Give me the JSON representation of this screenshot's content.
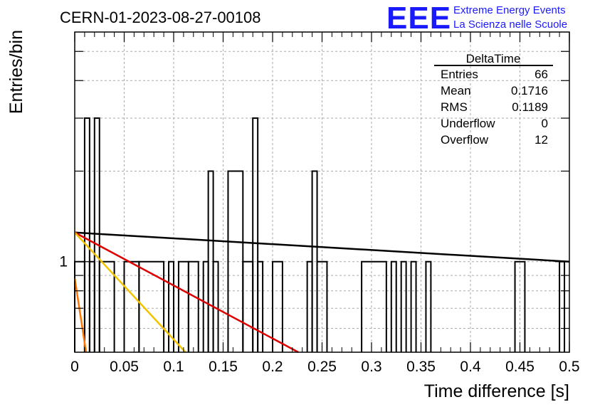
{
  "chart_data": {
    "type": "histogram",
    "title": "CERN-01-2023-08-27-00108",
    "xlabel": "Time difference [s]",
    "ylabel": "Entries/bin",
    "xlim": [
      0,
      0.5
    ],
    "ylim": [
      0.5,
      5.8
    ],
    "log_y": true,
    "grid": true,
    "x_ticks": [
      "0",
      "0.05",
      "0.1",
      "0.15",
      "0.2",
      "0.25",
      "0.3",
      "0.35",
      "0.4",
      "0.45",
      "0.5"
    ],
    "y_ticks": [
      "1"
    ],
    "bins": [
      {
        "x0": 0.0,
        "x1": 0.01,
        "y": 1
      },
      {
        "x0": 0.01,
        "x1": 0.015,
        "y": 3
      },
      {
        "x0": 0.015,
        "x1": 0.02,
        "y": 1
      },
      {
        "x0": 0.02,
        "x1": 0.025,
        "y": 3
      },
      {
        "x0": 0.025,
        "x1": 0.04,
        "y": 1
      },
      {
        "x0": 0.05,
        "x1": 0.065,
        "y": 1
      },
      {
        "x0": 0.065,
        "x1": 0.09,
        "y": 1
      },
      {
        "x0": 0.095,
        "x1": 0.1,
        "y": 1
      },
      {
        "x0": 0.105,
        "x1": 0.115,
        "y": 1
      },
      {
        "x0": 0.115,
        "x1": 0.125,
        "y": 1
      },
      {
        "x0": 0.13,
        "x1": 0.135,
        "y": 1
      },
      {
        "x0": 0.135,
        "x1": 0.14,
        "y": 2
      },
      {
        "x0": 0.14,
        "x1": 0.145,
        "y": 1
      },
      {
        "x0": 0.155,
        "x1": 0.17,
        "y": 2
      },
      {
        "x0": 0.17,
        "x1": 0.18,
        "y": 1
      },
      {
        "x0": 0.18,
        "x1": 0.185,
        "y": 3
      },
      {
        "x0": 0.185,
        "x1": 0.19,
        "y": 1
      },
      {
        "x0": 0.2,
        "x1": 0.21,
        "y": 1
      },
      {
        "x0": 0.235,
        "x1": 0.24,
        "y": 1
      },
      {
        "x0": 0.24,
        "x1": 0.245,
        "y": 2
      },
      {
        "x0": 0.245,
        "x1": 0.255,
        "y": 1
      },
      {
        "x0": 0.29,
        "x1": 0.315,
        "y": 1
      },
      {
        "x0": 0.32,
        "x1": 0.325,
        "y": 1
      },
      {
        "x0": 0.33,
        "x1": 0.335,
        "y": 1
      },
      {
        "x0": 0.34,
        "x1": 0.345,
        "y": 1
      },
      {
        "x0": 0.355,
        "x1": 0.36,
        "y": 1
      },
      {
        "x0": 0.445,
        "x1": 0.455,
        "y": 1
      },
      {
        "x0": 0.49,
        "x1": 0.495,
        "y": 1
      }
    ],
    "fit_lines": [
      {
        "color": "#000000",
        "x": [
          0.0,
          0.5
        ],
        "y": [
          1.25,
          1.0
        ]
      },
      {
        "color": "#dd0000",
        "x": [
          0.0,
          0.226
        ],
        "y": [
          1.25,
          0.5
        ]
      },
      {
        "color": "#f2c400",
        "x": [
          0.0,
          0.112
        ],
        "y": [
          1.25,
          0.5
        ]
      },
      {
        "color": "#ff7700",
        "x": [
          0.0,
          0.0115
        ],
        "y": [
          0.88,
          0.5
        ]
      }
    ]
  },
  "logo": {
    "big": "EEE",
    "line1": "Extreme Energy Events",
    "line2": "La Scienza nelle Scuole"
  },
  "stats": {
    "title": "DeltaTime",
    "rows": [
      {
        "label": "Entries",
        "value": "66"
      },
      {
        "label": "Mean",
        "value": "0.1716"
      },
      {
        "label": "RMS",
        "value": "0.1189"
      },
      {
        "label": "Underflow",
        "value": "0"
      },
      {
        "label": "Overflow",
        "value": "12"
      }
    ]
  },
  "colors": {
    "logo": "#1a1aff",
    "grid": "#aaaaaa",
    "axis": "#000000"
  }
}
